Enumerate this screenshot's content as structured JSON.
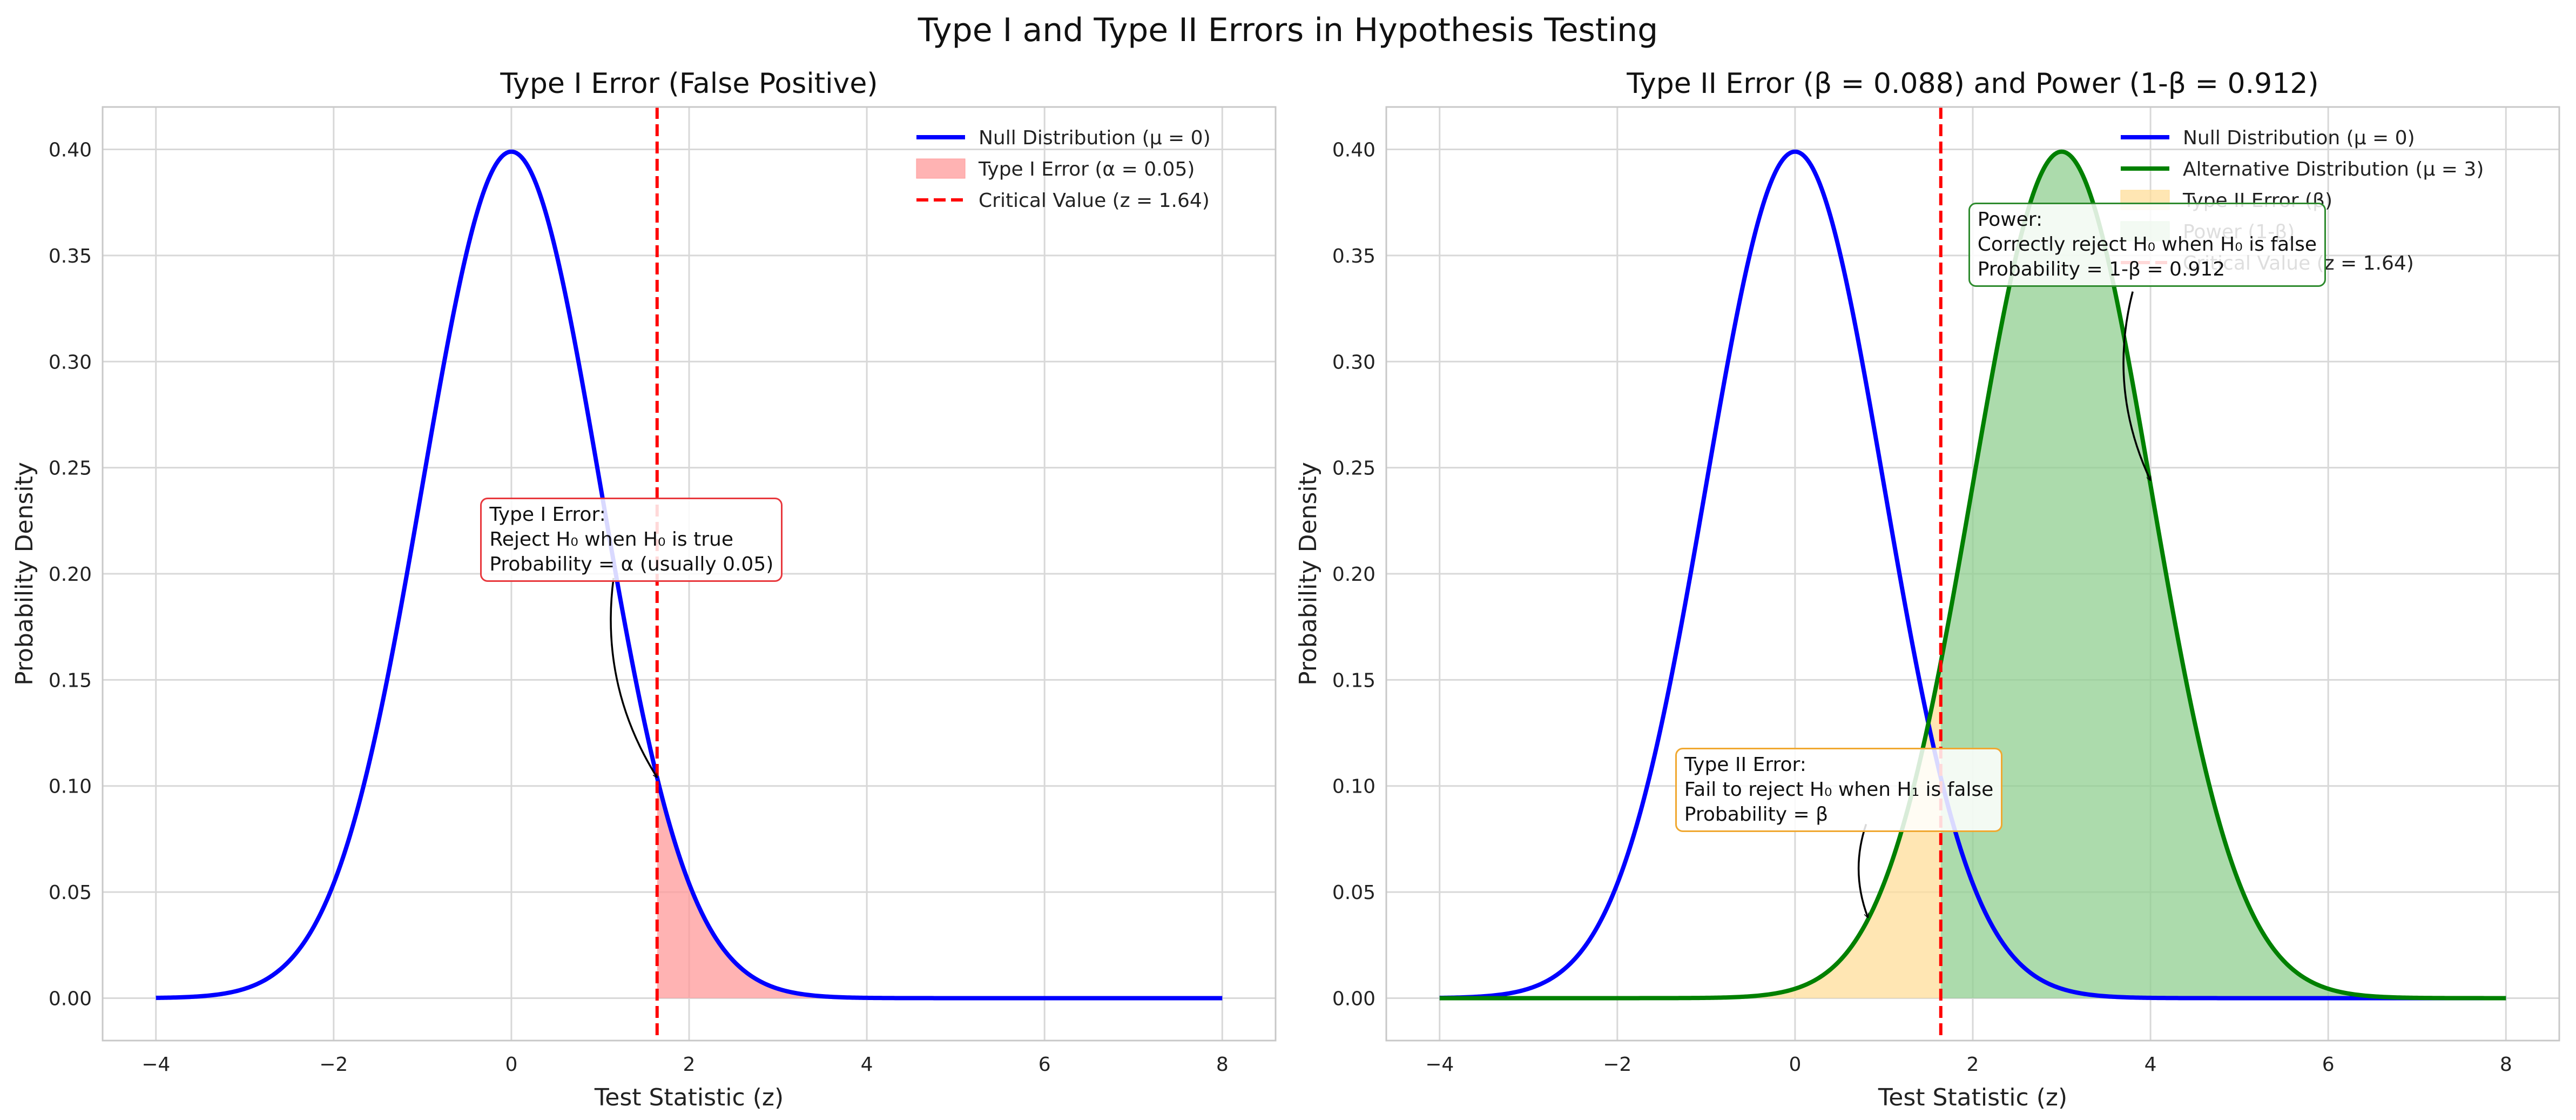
{
  "suptitle": "Type I and Type II Errors in Hypothesis Testing",
  "colors": {
    "null_line": "#0000ff",
    "alt_line": "#008000",
    "alpha_fill": "#ff9999",
    "beta_fill": "#ffdd99",
    "power_fill": "#90cf90",
    "critical_line": "#ff0000",
    "grid": "#d8d8d8",
    "type1_box_border": "#e8383d",
    "type2_box_border": "#f0a830",
    "power_box_border": "#2e8b2e"
  },
  "chart_data": [
    {
      "type": "line",
      "title": "Type I Error (False Positive)",
      "xlabel": "Test Statistic (z)",
      "ylabel": "Probability Density",
      "xlim": [
        -4.6,
        8.6
      ],
      "ylim": [
        -0.02,
        0.42
      ],
      "xticks": [
        -4,
        -2,
        0,
        2,
        4,
        6,
        8
      ],
      "xtick_labels": [
        "−4",
        "−2",
        "0",
        "2",
        "4",
        "6",
        "8"
      ],
      "yticks": [
        0.0,
        0.05,
        0.1,
        0.15,
        0.2,
        0.25,
        0.3,
        0.35,
        0.4
      ],
      "ytick_labels": [
        "0.00",
        "0.05",
        "0.10",
        "0.15",
        "0.20",
        "0.25",
        "0.30",
        "0.35",
        "0.40"
      ],
      "grid": true,
      "legend_position": "top-right",
      "critical_value": 1.64,
      "series": [
        {
          "name": "Null Distribution (μ = 0)",
          "kind": "normal_pdf",
          "mean": 0,
          "sd": 1,
          "x_range": [
            -4,
            8
          ],
          "color": "#0000ff"
        }
      ],
      "shaded_regions": [
        {
          "name": "Type I Error (α = 0.05)",
          "under": "Null Distribution (μ = 0)",
          "x_range": [
            1.64,
            8
          ],
          "color": "#ff9999"
        }
      ],
      "legend": [
        {
          "label": "Null Distribution (μ = 0)",
          "kind": "line",
          "color": "#0000ff"
        },
        {
          "label": "Type I Error (α = 0.05)",
          "kind": "patch",
          "color": "#ff9999"
        },
        {
          "label": "Critical Value (z = 1.64)",
          "kind": "dashed",
          "color": "#ff0000"
        }
      ],
      "annotations": [
        {
          "lines": [
            "Type I Error:",
            "Reject H₀ when H₀ is true",
            "Probability = α (usually 0.05)"
          ],
          "box_anchor": [
            -0.35,
            0.236
          ],
          "arrow_from": [
            1.15,
            0.198
          ],
          "arrow_to": [
            1.64,
            0.104
          ],
          "border_color": "#e8383d"
        }
      ]
    },
    {
      "type": "line",
      "title": "Type II Error (β = 0.088) and Power (1-β = 0.912)",
      "xlabel": "Test Statistic (z)",
      "ylabel": "Probability Density",
      "xlim": [
        -4.6,
        8.6
      ],
      "ylim": [
        -0.02,
        0.42
      ],
      "xticks": [
        -4,
        -2,
        0,
        2,
        4,
        6,
        8
      ],
      "xtick_labels": [
        "−4",
        "−2",
        "0",
        "2",
        "4",
        "6",
        "8"
      ],
      "yticks": [
        0.0,
        0.05,
        0.1,
        0.15,
        0.2,
        0.25,
        0.3,
        0.35,
        0.4
      ],
      "ytick_labels": [
        "0.00",
        "0.05",
        "0.10",
        "0.15",
        "0.20",
        "0.25",
        "0.30",
        "0.35",
        "0.40"
      ],
      "grid": true,
      "legend_position": "top-right",
      "critical_value": 1.64,
      "series": [
        {
          "name": "Null Distribution (μ = 0)",
          "kind": "normal_pdf",
          "mean": 0,
          "sd": 1,
          "x_range": [
            -4,
            8
          ],
          "color": "#0000ff"
        },
        {
          "name": "Alternative Distribution (μ = 3)",
          "kind": "normal_pdf",
          "mean": 3,
          "sd": 1,
          "x_range": [
            -4,
            8
          ],
          "color": "#008000"
        }
      ],
      "shaded_regions": [
        {
          "name": "Type II Error (β)",
          "under": "Alternative Distribution (μ = 3)",
          "x_range": [
            -4,
            1.64
          ],
          "color": "#ffdd99"
        },
        {
          "name": "Power (1-β)",
          "under": "Alternative Distribution (μ = 3)",
          "x_range": [
            1.64,
            8
          ],
          "color": "#90cf90"
        }
      ],
      "legend": [
        {
          "label": "Null Distribution (μ = 0)",
          "kind": "line",
          "color": "#0000ff"
        },
        {
          "label": "Alternative Distribution (μ = 3)",
          "kind": "line",
          "color": "#008000"
        },
        {
          "label": "Type II Error (β)",
          "kind": "patch",
          "color": "#ffdd99"
        },
        {
          "label": "Power (1-β)",
          "kind": "patch",
          "color": "#90cf90"
        },
        {
          "label": "Critical Value (z = 1.64)",
          "kind": "dashed",
          "color": "#ff0000"
        }
      ],
      "annotations": [
        {
          "lines": [
            "Type II Error:",
            "Fail to reject H₀ when H₁ is false",
            "Probability = β"
          ],
          "box_anchor": [
            -1.35,
            0.118
          ],
          "arrow_from": [
            0.8,
            0.082
          ],
          "arrow_to": [
            0.82,
            0.038
          ],
          "border_color": "#f0a830"
        },
        {
          "lines": [
            "Power:",
            "Correctly reject H₀ when H₀ is false",
            "Probability = 1-β = 0.912"
          ],
          "box_anchor": [
            1.95,
            0.375
          ],
          "arrow_from": [
            3.8,
            0.333
          ],
          "arrow_to": [
            4.0,
            0.244
          ],
          "border_color": "#2e8b2e"
        }
      ]
    }
  ]
}
